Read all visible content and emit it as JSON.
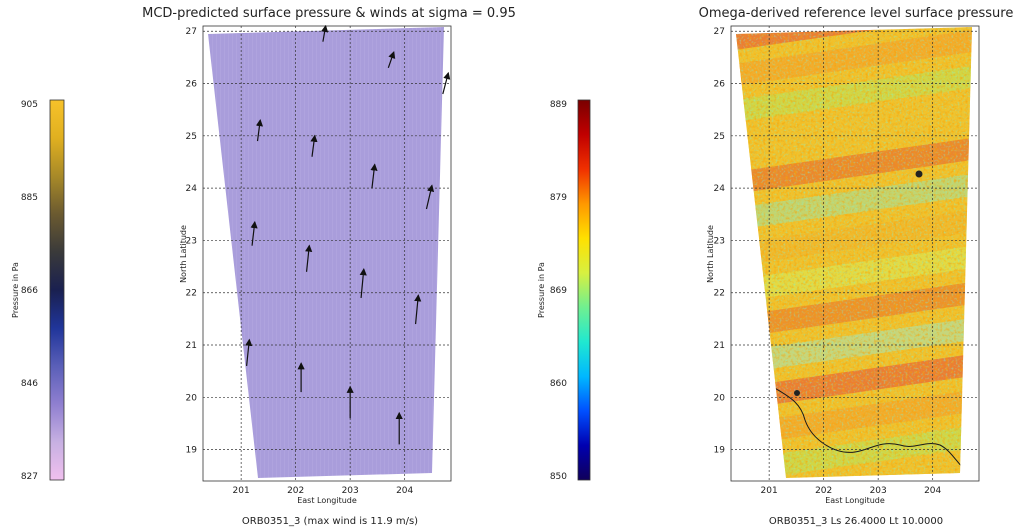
{
  "colors": {
    "left_cmap": [
      "#f0c0ee",
      "#c7b0e2",
      "#8f7fd0",
      "#5a5fb8",
      "#20359a",
      "#1a2050",
      "#3a3a3a",
      "#6b5a30",
      "#a88a28",
      "#e0b020",
      "#f7c22a"
    ],
    "right_cmap": [
      "#10005a",
      "#0000b0",
      "#0050ff",
      "#00b8ff",
      "#20e8d0",
      "#70f090",
      "#d8f040",
      "#ffe000",
      "#ff9800",
      "#f03000",
      "#c00000",
      "#7a0000"
    ],
    "left_field": "#a99ddb",
    "arrow": "#111111"
  },
  "chart_data": [
    {
      "type": "colorbar",
      "label": "Pressure in Pa",
      "colormap": "left_cmap",
      "ticks": [
        "905",
        "885",
        "866",
        "846",
        "827"
      ],
      "range": [
        827,
        905
      ]
    },
    {
      "type": "heatmap",
      "title": "MCD-predicted surface pressure & winds at sigma = 0.95",
      "xlabel": "East Longitude",
      "ylabel": "North Latitude",
      "xticks": [
        "201",
        "202",
        "203",
        "204"
      ],
      "yticks": [
        "19",
        "20",
        "21",
        "22",
        "23",
        "24",
        "25",
        "26",
        "27"
      ],
      "xlim": [
        200.3,
        204.85
      ],
      "ylim": [
        18.4,
        27.1
      ],
      "grid": true,
      "field": "uniform pressure near lower end of scale (pale violet)",
      "wind_arrows": [
        {
          "lon": 202.5,
          "lat": 26.8,
          "dlon": 0.05,
          "dlat": 0.3
        },
        {
          "lon": 203.7,
          "lat": 26.3,
          "dlon": 0.1,
          "dlat": 0.3
        },
        {
          "lon": 204.7,
          "lat": 25.8,
          "dlon": 0.1,
          "dlat": 0.4
        },
        {
          "lon": 201.3,
          "lat": 24.9,
          "dlon": 0.05,
          "dlat": 0.4
        },
        {
          "lon": 202.3,
          "lat": 24.6,
          "dlon": 0.05,
          "dlat": 0.4
        },
        {
          "lon": 203.4,
          "lat": 24.0,
          "dlon": 0.05,
          "dlat": 0.45
        },
        {
          "lon": 204.4,
          "lat": 23.6,
          "dlon": 0.1,
          "dlat": 0.45
        },
        {
          "lon": 201.2,
          "lat": 22.9,
          "dlon": 0.05,
          "dlat": 0.45
        },
        {
          "lon": 202.2,
          "lat": 22.4,
          "dlon": 0.05,
          "dlat": 0.5
        },
        {
          "lon": 203.2,
          "lat": 21.9,
          "dlon": 0.05,
          "dlat": 0.55
        },
        {
          "lon": 204.2,
          "lat": 21.4,
          "dlon": 0.05,
          "dlat": 0.55
        },
        {
          "lon": 201.1,
          "lat": 20.6,
          "dlon": 0.05,
          "dlat": 0.5
        },
        {
          "lon": 202.1,
          "lat": 20.1,
          "dlon": 0.0,
          "dlat": 0.55
        },
        {
          "lon": 203.0,
          "lat": 19.6,
          "dlon": 0.0,
          "dlat": 0.6
        },
        {
          "lon": 203.9,
          "lat": 19.1,
          "dlon": 0.0,
          "dlat": 0.6
        }
      ],
      "footer": "ORB0351_3  (max wind is 11.9 m/s)"
    },
    {
      "type": "colorbar",
      "label": "Pressure in Pa",
      "colormap": "right_cmap",
      "ticks": [
        "889",
        "879",
        "869",
        "860",
        "850"
      ],
      "range": [
        850,
        889
      ]
    },
    {
      "type": "heatmap",
      "title": "Omega-derived reference level surface pressure",
      "xlabel": "East Longitude",
      "ylabel": "North Latitude",
      "xticks": [
        "201",
        "202",
        "203",
        "204"
      ],
      "yticks": [
        "19",
        "20",
        "21",
        "22",
        "23",
        "24",
        "25",
        "26",
        "27"
      ],
      "xlim": [
        200.3,
        204.85
      ],
      "ylim": [
        18.4,
        27.1
      ],
      "grid": true,
      "field": "noisy pressure field with diagonal bands, mostly yellow/orange with green-cyan bands",
      "footer": "ORB0351_3 Ls 26.4000 Lt 10.0000"
    }
  ]
}
